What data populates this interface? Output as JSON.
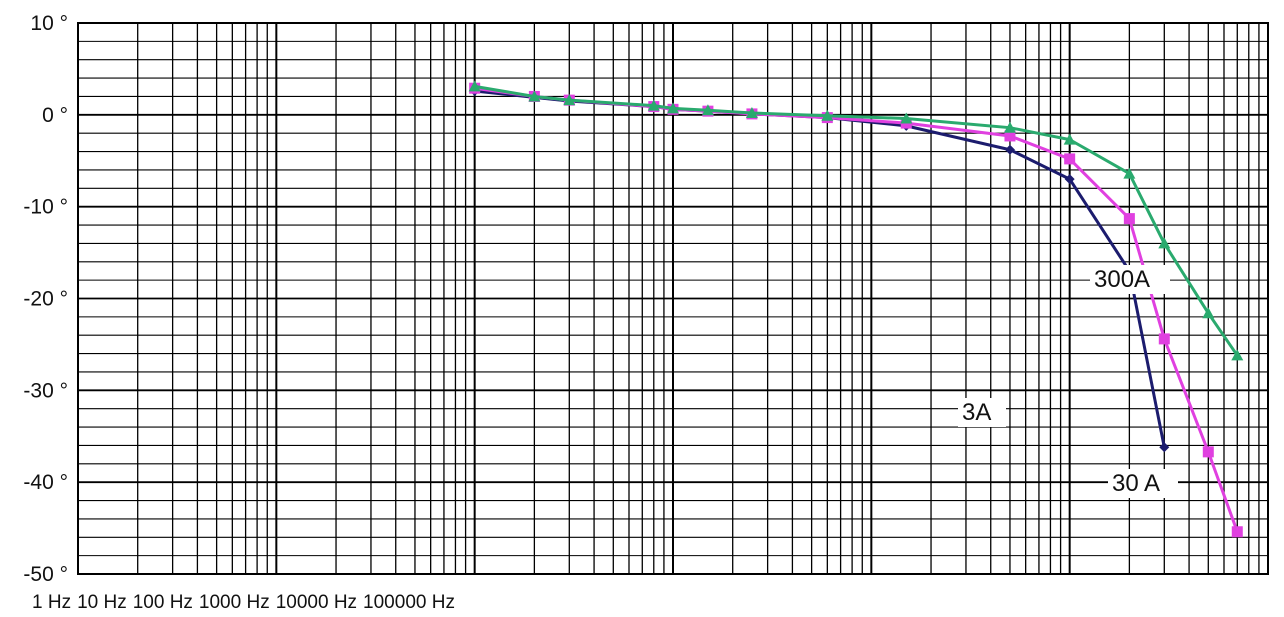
{
  "chart_data": {
    "type": "line",
    "xscale": "log",
    "x_tick_labels": [
      "1 Hz",
      "10 Hz",
      "100 Hz",
      "1000 Hz",
      "10000 Hz",
      "100000 Hz"
    ],
    "y_tick_labels": [
      "10 °",
      "0 °",
      "-10 °",
      "-20 °",
      "-30 °",
      "-40 °",
      "-50 °"
    ],
    "y_ticks": [
      10,
      0,
      -10,
      -20,
      -30,
      -40,
      -50
    ],
    "ylim": [
      -50,
      10
    ],
    "grid": true,
    "series": [
      {
        "name": "3A",
        "color": "#1c1c6e",
        "marker": "diamond",
        "x": [
          10,
          20,
          30,
          80,
          100,
          150,
          250,
          600,
          1500,
          5000,
          10000,
          20000,
          30000
        ],
        "y": [
          2.6,
          1.9,
          1.5,
          0.9,
          0.6,
          0.4,
          0.1,
          -0.3,
          -1.2,
          -3.8,
          -7.0,
          -17.0,
          -36.2
        ]
      },
      {
        "name": "30 A",
        "color": "#e040e0",
        "marker": "square",
        "x": [
          10,
          20,
          30,
          80,
          100,
          150,
          250,
          600,
          1500,
          5000,
          10000,
          20000,
          30000,
          50000,
          70000
        ],
        "y": [
          2.9,
          2.0,
          1.6,
          0.9,
          0.6,
          0.4,
          0.1,
          -0.3,
          -0.9,
          -2.3,
          -4.8,
          -11.3,
          -24.4,
          -36.7,
          -45.4
        ]
      },
      {
        "name": "300A",
        "color": "#2aaa6e",
        "marker": "triangle",
        "x": [
          10,
          20,
          30,
          80,
          100,
          150,
          250,
          600,
          1500,
          5000,
          10000,
          20000,
          30000,
          50000,
          70000
        ],
        "y": [
          3.1,
          2.0,
          1.6,
          1.0,
          0.7,
          0.5,
          0.2,
          -0.1,
          -0.4,
          -1.4,
          -2.7,
          -6.4,
          -14.0,
          -21.6,
          -26.2
        ]
      }
    ]
  }
}
